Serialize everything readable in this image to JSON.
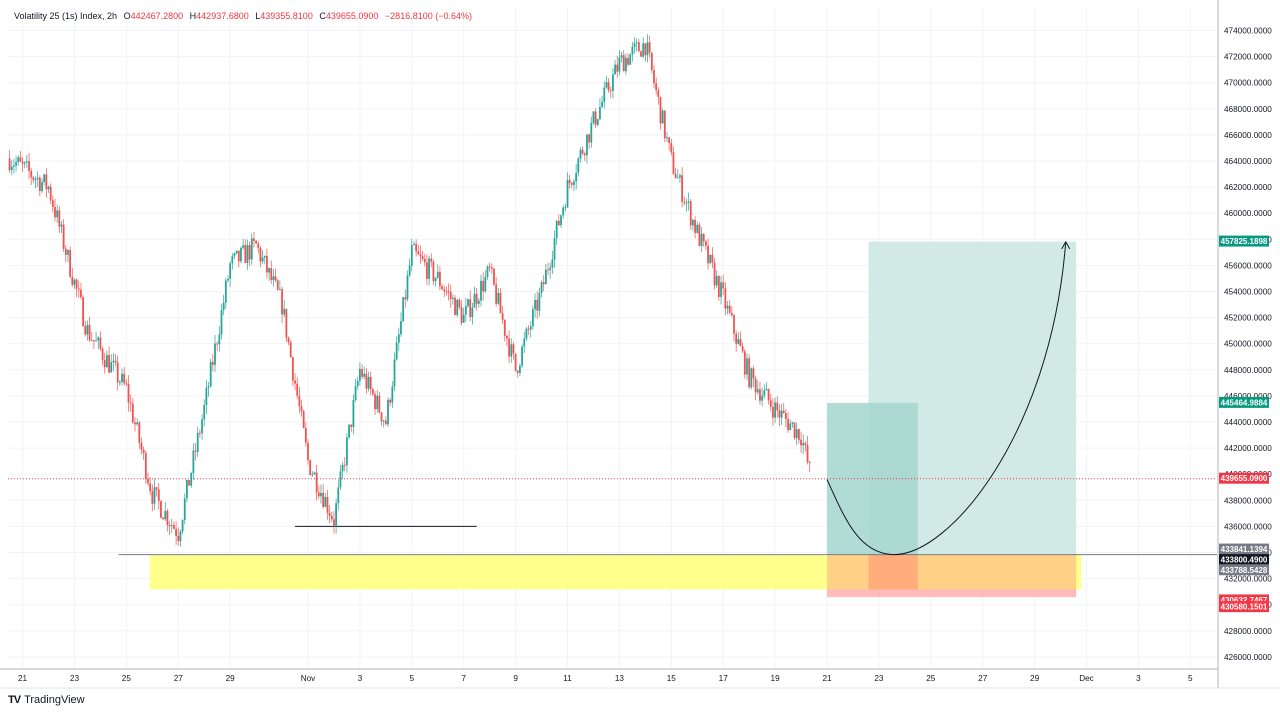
{
  "header": {
    "symbol": "Volatility 25 (1s) Index, 2h",
    "o_label": "O",
    "o": "442467.2800",
    "h_label": "H",
    "h": "442937.6800",
    "l_label": "L",
    "l": "439355.8100",
    "c_label": "C",
    "c": "439655.0900",
    "change": "−2816.8100 (−0.64%)"
  },
  "branding": {
    "logo_mark": "TV",
    "name": "TradingView"
  },
  "colors": {
    "up": "#26a69a",
    "down": "#ef5350",
    "grid": "#f0f3fa",
    "target_zone": "#cfe9e4",
    "entry_zone": "#a7d8d0",
    "support_zone": "#ffff80",
    "stop_zone": "#ffb2b2",
    "last_price": "#f23645"
  },
  "chart_data": {
    "type": "candlestick",
    "title": "Volatility 25 (1s) Index, 2h",
    "ylim": [
      425000,
      475600
    ],
    "y_ticks": [
      "426000.0000",
      "428000.0000",
      "430000.0000",
      "432000.0000",
      "434000.0000",
      "436000.0000",
      "438000.0000",
      "440000.0000",
      "442000.0000",
      "444000.0000",
      "446000.0000",
      "448000.0000",
      "450000.0000",
      "452000.0000",
      "454000.0000",
      "456000.0000",
      "458000.0000",
      "460000.0000",
      "462000.0000",
      "464000.0000",
      "466000.0000",
      "468000.0000",
      "470000.0000",
      "472000.0000",
      "474000.0000"
    ],
    "x_ticks": [
      "21",
      "23",
      "25",
      "27",
      "29",
      "Nov",
      "3",
      "5",
      "7",
      "9",
      "11",
      "13",
      "15",
      "17",
      "19",
      "21",
      "23",
      "25",
      "27",
      "29",
      "Dec",
      "3",
      "5"
    ],
    "x_tick_days": [
      -11,
      -9,
      -7,
      -5,
      -3,
      0,
      2,
      4,
      6,
      8,
      10,
      12,
      14,
      16,
      18,
      20,
      22,
      24,
      26,
      28,
      30,
      32,
      34
    ],
    "grid": true,
    "candles_anchor_days": [
      -11.5,
      -10,
      -8.5,
      -7,
      -6,
      -5,
      -4,
      -3,
      -2,
      -1,
      0,
      1,
      2,
      3,
      4,
      5,
      6,
      7,
      8,
      9,
      10,
      11,
      12,
      13,
      14,
      15,
      16,
      17,
      18,
      19,
      19.4
    ],
    "candles_anchor_values": [
      464200,
      462000,
      451000,
      446500,
      438500,
      435500,
      445000,
      456000,
      457500,
      453000,
      441000,
      436500,
      448000,
      444000,
      457000,
      455000,
      452000,
      455500,
      448000,
      454000,
      462000,
      467000,
      471500,
      473000,
      464000,
      458500,
      453500,
      447500,
      445000,
      443000,
      439655
    ],
    "horizontal_lines": [
      {
        "value": 436000,
        "from_day": -0.5,
        "to_day": 6.5
      },
      {
        "value": 433841.1394,
        "from_day": -7.3,
        "to_day": 39
      }
    ],
    "zones": [
      {
        "name": "support",
        "from_day": -6.1,
        "to_day": 29.8,
        "top": 433841.1394,
        "bottom": 431170
      },
      {
        "name": "target",
        "from_day": 21.6,
        "to_day": 29.6,
        "top": 457825.1898,
        "bottom": 433841.1394
      },
      {
        "name": "entry",
        "from_day": 20,
        "to_day": 23.5,
        "top": 445464.9884,
        "bottom": 433841.1394
      },
      {
        "name": "stop",
        "from_day": 20,
        "to_day": 29.6,
        "top": 433841.1394,
        "bottom": 430580.1501
      }
    ],
    "projection_path_days": [
      20,
      22.6,
      29.2
    ],
    "projection_path_values": [
      439600,
      433841,
      457800
    ],
    "price_labels": [
      {
        "text": "457825.1898",
        "value": 457825.1898,
        "color": "#089981"
      },
      {
        "text": "445464.9884",
        "value": 445464.9884,
        "color": "#089981"
      },
      {
        "text": "439655.0900",
        "value": 439655.09,
        "color": "#f23645"
      },
      {
        "text": "433841.1394",
        "value": 433841.1394,
        "color": "#787b86"
      },
      {
        "text": "433800.4900",
        "value": 433800.49,
        "color": "#131722"
      },
      {
        "text": "433788.5428",
        "value": 433788.5428,
        "color": "#787b86"
      },
      {
        "text": "430632.7467",
        "value": 430632.7467,
        "color": "#f23645"
      },
      {
        "text": "430580.1501",
        "value": 430580.1501,
        "color": "#f23645"
      }
    ],
    "last_price": 439655.09
  }
}
